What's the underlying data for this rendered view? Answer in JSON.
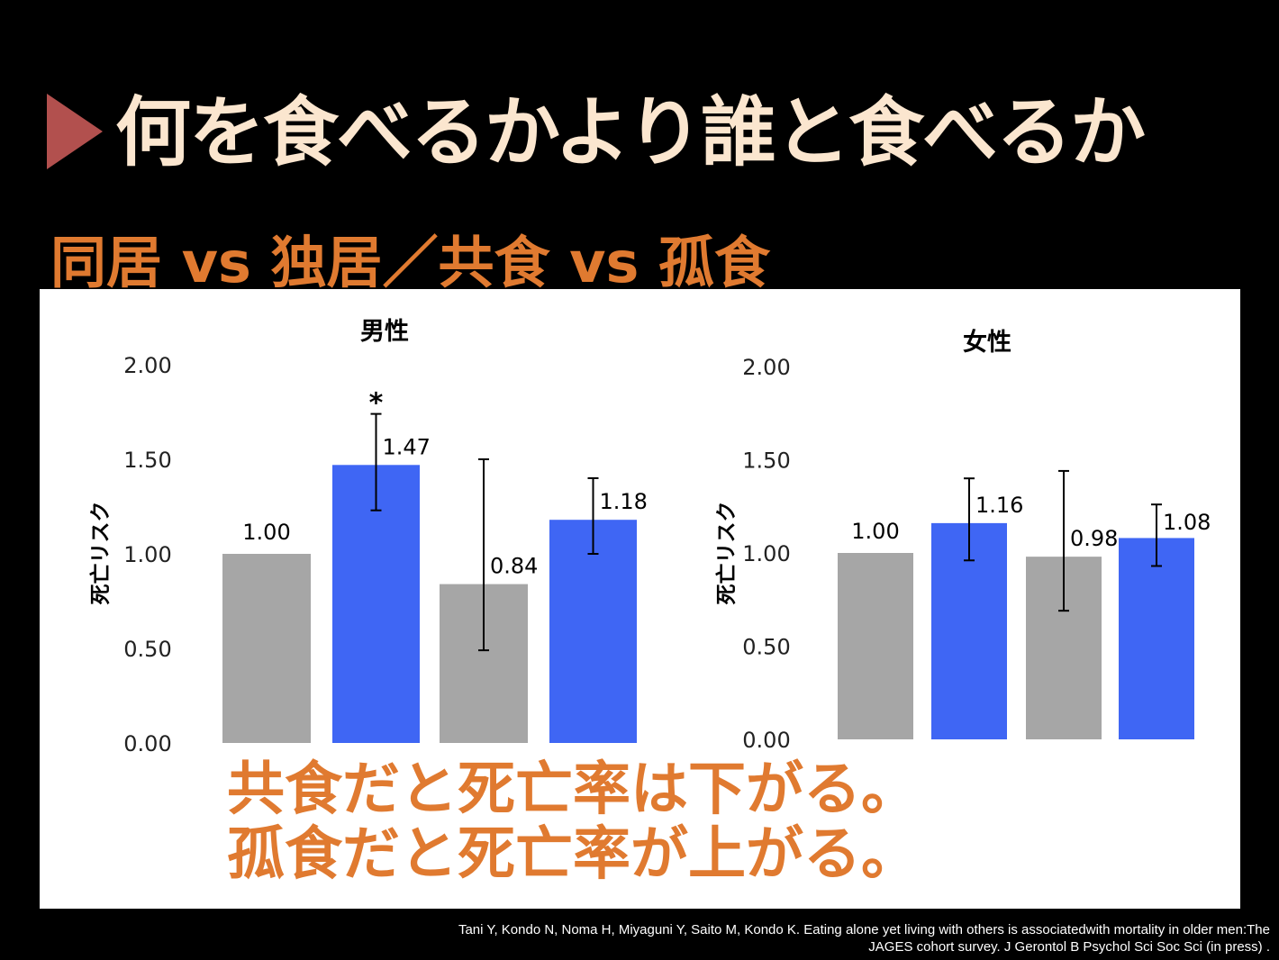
{
  "slide": {
    "title": "何を食べるかより誰と食べるか",
    "subtitle": "同居 vs 独居／共食 vs 孤食",
    "conclusion": [
      "共食だと死亡率は下がる。",
      "孤食だと死亡率が上がる。"
    ],
    "citation": [
      "Tani Y, Kondo N, Noma H, Miyaguni Y, Saito M, Kondo K. Eating alone yet living with others is associatedwith mortality in older men:The",
      "JAGES cohort survey. J Gerontol B Psychol Sci Soc Sci (in press) ."
    ]
  },
  "colors": {
    "title": "#fbe6cf",
    "accent": "#e07a30",
    "triangle": "#b2504e",
    "gray_bar": "#a6a6a6",
    "blue_bar": "#3f66f4"
  },
  "chart_data": [
    {
      "type": "bar",
      "title": "男性",
      "ylabel": "死亡リスク",
      "ylim": [
        0,
        2
      ],
      "yticks": [
        "0.00",
        "0.50",
        "1.00",
        "1.50",
        "2.00"
      ],
      "values": [
        1.0,
        1.47,
        0.84,
        1.18
      ],
      "value_labels": [
        "1.00",
        "1.47",
        "0.84",
        "1.18"
      ],
      "error_bars": [
        null,
        [
          1.23,
          1.74
        ],
        [
          0.49,
          1.5
        ],
        [
          1.0,
          1.4
        ]
      ],
      "bar_colors": [
        "gray",
        "blue",
        "gray",
        "blue"
      ],
      "significance": [
        "",
        "*",
        "",
        ""
      ]
    },
    {
      "type": "bar",
      "title": "女性",
      "ylabel": "死亡リスク",
      "ylim": [
        0,
        2
      ],
      "yticks": [
        "0.00",
        "0.50",
        "1.00",
        "1.50",
        "2.00"
      ],
      "values": [
        1.0,
        1.16,
        0.98,
        1.08
      ],
      "value_labels": [
        "1.00",
        "1.16",
        "0.98",
        "1.08"
      ],
      "error_bars": [
        null,
        [
          0.96,
          1.4
        ],
        [
          0.69,
          1.44
        ],
        [
          0.93,
          1.26
        ]
      ],
      "bar_colors": [
        "gray",
        "blue",
        "gray",
        "blue"
      ],
      "significance": [
        "",
        "",
        "",
        ""
      ]
    }
  ]
}
